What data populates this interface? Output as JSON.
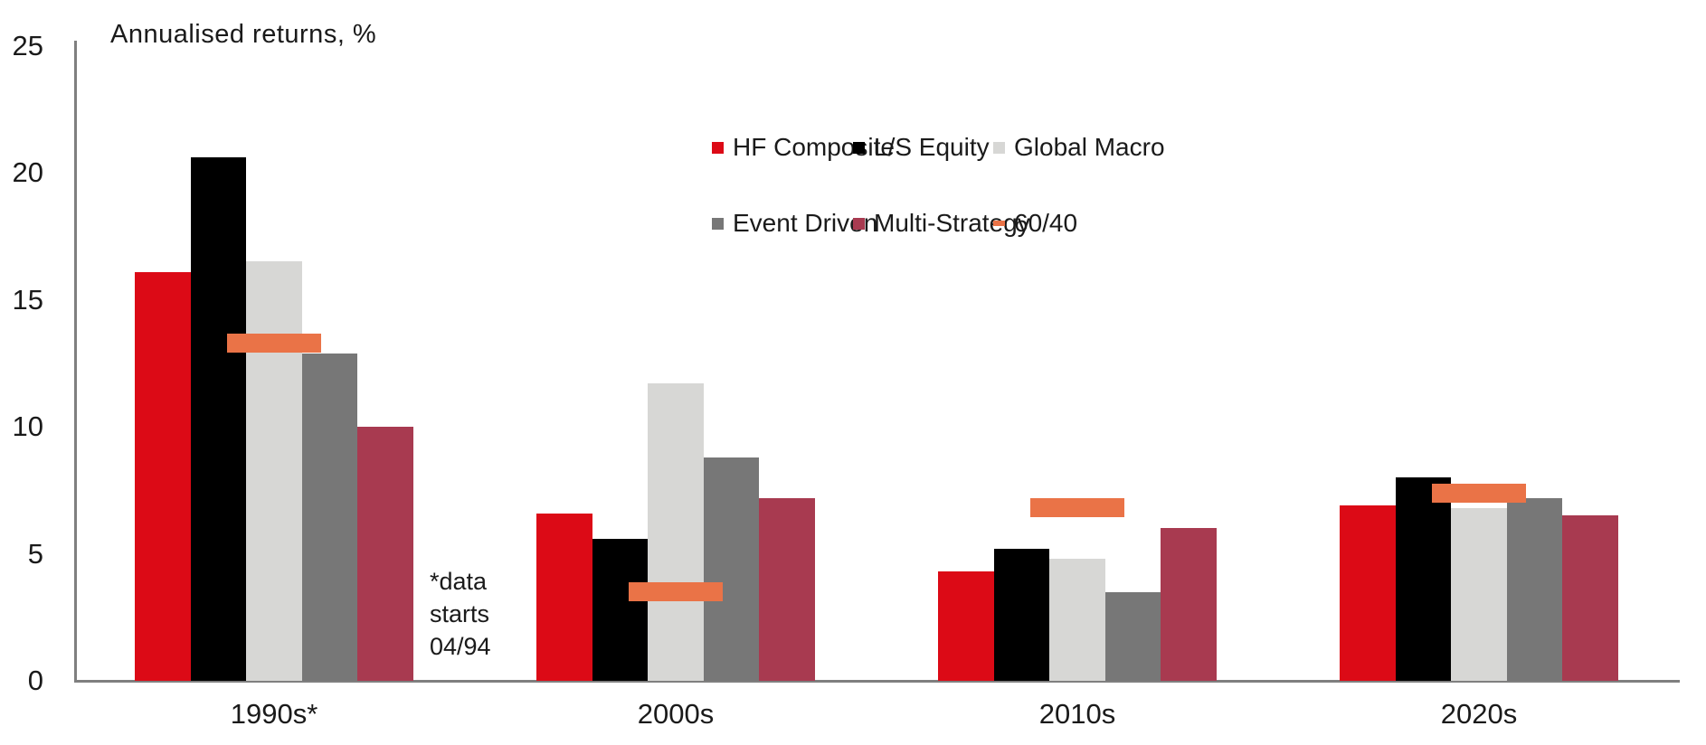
{
  "title": "Annualised returns, %",
  "axis": {
    "line_color": "#7f7f7f",
    "yticks": [
      0,
      5,
      10,
      15,
      20,
      25
    ]
  },
  "annotation": {
    "lines": [
      "*data",
      "starts",
      "04/94"
    ]
  },
  "legend": {
    "rows": [
      [
        "HF Composite",
        "L/S Equity",
        "Global Macro"
      ],
      [
        "Event Driven",
        "Multi-Strategy",
        "60/40"
      ]
    ]
  },
  "chart_data": {
    "type": "bar",
    "title": "Annualised returns, %",
    "xlabel": "",
    "ylabel": "Annualised returns, %",
    "ylim": [
      0,
      25
    ],
    "grid": false,
    "legend_position": "upper-center",
    "categories": [
      "1990s*",
      "2000s",
      "2010s",
      "2020s"
    ],
    "series": [
      {
        "name": "HF Composite",
        "marker": "bar",
        "color": "#dc0a16",
        "values": [
          16.1,
          6.6,
          4.3,
          6.9
        ]
      },
      {
        "name": "L/S Equity",
        "marker": "bar",
        "color": "#000000",
        "values": [
          20.6,
          5.6,
          5.2,
          8.0
        ]
      },
      {
        "name": "Global Macro",
        "marker": "bar",
        "color": "#d7d7d5",
        "values": [
          16.5,
          11.7,
          4.8,
          6.8
        ]
      },
      {
        "name": "Event Driven",
        "marker": "bar",
        "color": "#777777",
        "values": [
          12.9,
          8.8,
          3.5,
          7.2
        ]
      },
      {
        "name": "Multi-Strategy",
        "marker": "bar",
        "color": "#a83a50",
        "values": [
          10.0,
          7.2,
          6.0,
          6.5
        ]
      },
      {
        "name": "60/40",
        "marker": "dash",
        "color": "#ea7347",
        "values": [
          13.3,
          3.5,
          6.8,
          7.4
        ]
      }
    ],
    "footnote": "*data starts 04/94"
  }
}
